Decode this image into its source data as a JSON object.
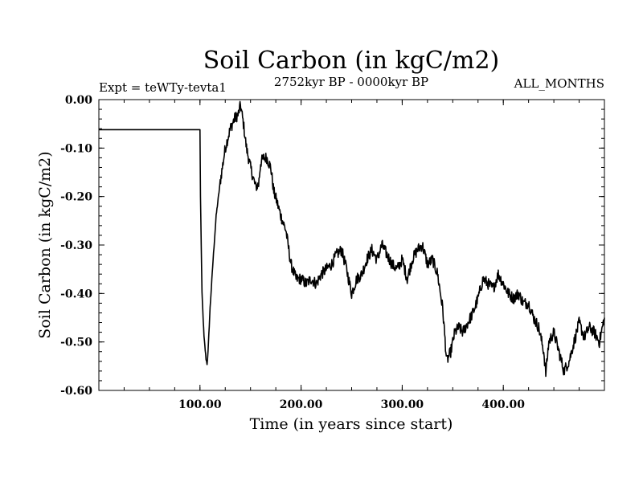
{
  "chart_data": {
    "type": "line",
    "title": "Soil Carbon (in kgC/m2)",
    "subtitle": "2752kyr BP - 0000kyr BP",
    "left_label": "Expt = teWTy-tevta1",
    "right_label": "ALL_MONTHS",
    "xlabel": "Time (in years since start)",
    "ylabel": "Soil Carbon (in kgC/m2)",
    "xlim": [
      0,
      500
    ],
    "ylim": [
      -0.6,
      0.0
    ],
    "x_ticks": [
      100,
      200,
      300,
      400
    ],
    "x_tick_labels": [
      "100.00",
      "200.00",
      "300.00",
      "400.00"
    ],
    "y_ticks": [
      0.0,
      -0.1,
      -0.2,
      -0.3,
      -0.4,
      -0.5,
      -0.6
    ],
    "y_tick_labels": [
      "0.00",
      "-0.10",
      "-0.20",
      "-0.30",
      "-0.40",
      "-0.50",
      "-0.60"
    ],
    "grid": false,
    "series": [
      {
        "name": "Soil Carbon",
        "color": "#000000",
        "x": [
          0,
          100,
          100.5,
          102,
          104,
          106,
          107,
          108,
          110,
          113,
          116,
          120,
          125,
          130,
          134,
          138,
          140,
          143,
          146,
          150,
          155,
          158,
          160,
          163,
          166,
          170,
          173,
          176,
          180,
          185,
          190,
          195,
          200,
          205,
          210,
          215,
          220,
          225,
          230,
          235,
          240,
          245,
          250,
          255,
          260,
          265,
          270,
          275,
          280,
          285,
          290,
          295,
          300,
          305,
          310,
          315,
          320,
          325,
          330,
          335,
          340,
          344,
          348,
          352,
          356,
          360,
          365,
          370,
          375,
          380,
          385,
          390,
          395,
          400,
          405,
          410,
          415,
          420,
          425,
          430,
          435,
          440,
          442,
          445,
          450,
          455,
          460,
          465,
          470,
          475,
          480,
          485,
          490,
          495,
          500
        ],
        "y": [
          -0.062,
          -0.062,
          -0.2,
          -0.4,
          -0.49,
          -0.535,
          -0.545,
          -0.52,
          -0.43,
          -0.33,
          -0.24,
          -0.17,
          -0.1,
          -0.06,
          -0.04,
          -0.03,
          -0.01,
          -0.05,
          -0.1,
          -0.14,
          -0.18,
          -0.175,
          -0.13,
          -0.12,
          -0.12,
          -0.14,
          -0.19,
          -0.21,
          -0.24,
          -0.27,
          -0.34,
          -0.37,
          -0.37,
          -0.38,
          -0.37,
          -0.38,
          -0.36,
          -0.35,
          -0.34,
          -0.32,
          -0.31,
          -0.35,
          -0.4,
          -0.37,
          -0.36,
          -0.33,
          -0.31,
          -0.33,
          -0.3,
          -0.32,
          -0.34,
          -0.35,
          -0.33,
          -0.37,
          -0.33,
          -0.31,
          -0.3,
          -0.34,
          -0.33,
          -0.36,
          -0.43,
          -0.54,
          -0.52,
          -0.48,
          -0.47,
          -0.48,
          -0.46,
          -0.44,
          -0.41,
          -0.37,
          -0.38,
          -0.39,
          -0.36,
          -0.38,
          -0.4,
          -0.41,
          -0.4,
          -0.42,
          -0.42,
          -0.45,
          -0.47,
          -0.52,
          -0.565,
          -0.5,
          -0.48,
          -0.52,
          -0.56,
          -0.54,
          -0.5,
          -0.46,
          -0.49,
          -0.47,
          -0.48,
          -0.5,
          -0.45
        ]
      }
    ]
  }
}
